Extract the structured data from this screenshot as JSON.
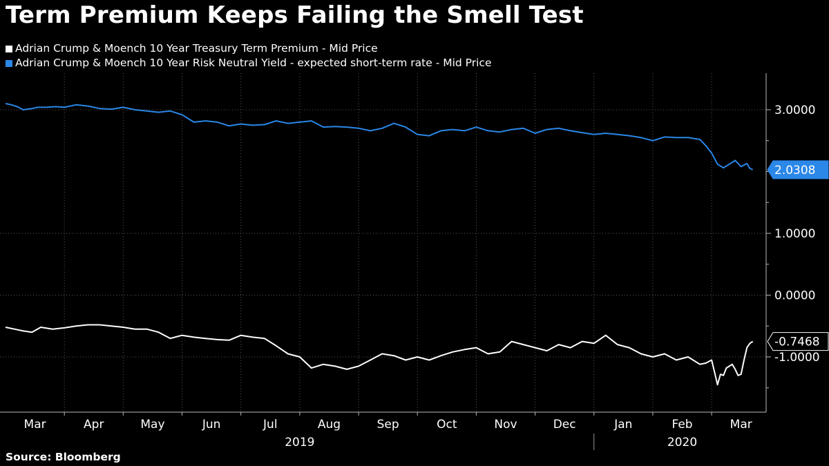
{
  "header": {
    "title": "Term Premium Keeps Failing the Smell Test"
  },
  "legend": [
    {
      "label": "Adrian Crump & Moench 10 Year Treasury Term Premium - Mid Price",
      "color": "#ffffff"
    },
    {
      "label": "Adrian Crump & Moench 10 Year Risk Neutral Yield - expected short-term rate - Mid Price",
      "color": "#2b87e8"
    }
  ],
  "footer": {
    "source": "Source: Bloomberg"
  },
  "chart_data": {
    "type": "line",
    "title": "Term Premium Keeps Failing the Smell Test",
    "xlabel": "",
    "ylabel": "",
    "x_unit": "month index (0 = Mar 1, 2019)",
    "xlim": [
      0,
      12.75
    ],
    "ylim": [
      -1.9,
      3.55
    ],
    "yticks": [
      {
        "value": 3.0,
        "label": "3.0000"
      },
      {
        "value": 1.0,
        "label": "1.0000"
      },
      {
        "value": 0.0,
        "label": "0.0000"
      },
      {
        "value": -1.0,
        "label": "-1.0000"
      }
    ],
    "minor_yticks": [
      2.5,
      2.0,
      1.5,
      0.5,
      -0.5,
      -1.5
    ],
    "month_ticks": [
      {
        "x": 0.5,
        "label": "Mar"
      },
      {
        "x": 1.5,
        "label": "Apr"
      },
      {
        "x": 2.5,
        "label": "May"
      },
      {
        "x": 3.5,
        "label": "Jun"
      },
      {
        "x": 4.5,
        "label": "Jul"
      },
      {
        "x": 5.5,
        "label": "Aug"
      },
      {
        "x": 6.5,
        "label": "Sep"
      },
      {
        "x": 7.5,
        "label": "Oct"
      },
      {
        "x": 8.5,
        "label": "Nov"
      },
      {
        "x": 9.5,
        "label": "Dec"
      },
      {
        "x": 10.5,
        "label": "Jan"
      },
      {
        "x": 11.5,
        "label": "Feb"
      },
      {
        "x": 12.5,
        "label": "Mar"
      }
    ],
    "year_labels": [
      {
        "x": 5.0,
        "label": "2019"
      },
      {
        "x": 11.5,
        "label": "2020"
      }
    ],
    "year_divider_x": 10.0,
    "series": [
      {
        "name": "Adrian Crump & Moench 10 Year Risk Neutral Yield - expected short-term rate - Mid Price",
        "color": "#2b87e8",
        "last_label": "2.0308",
        "x": [
          0,
          0.1,
          0.2,
          0.3,
          0.45,
          0.55,
          0.7,
          0.85,
          1.0,
          1.2,
          1.4,
          1.6,
          1.8,
          2.0,
          2.2,
          2.4,
          2.6,
          2.8,
          3.0,
          3.2,
          3.4,
          3.6,
          3.8,
          4.0,
          4.2,
          4.4,
          4.6,
          4.8,
          5.0,
          5.2,
          5.4,
          5.6,
          5.8,
          6.0,
          6.2,
          6.4,
          6.6,
          6.8,
          7.0,
          7.2,
          7.4,
          7.6,
          7.8,
          8.0,
          8.2,
          8.4,
          8.6,
          8.8,
          9.0,
          9.2,
          9.4,
          9.6,
          9.8,
          10.0,
          10.2,
          10.4,
          10.6,
          10.8,
          11.0,
          11.2,
          11.4,
          11.6,
          11.8,
          11.9,
          12.0,
          12.1,
          12.2,
          12.3,
          12.4,
          12.5,
          12.6,
          12.65,
          12.7
        ],
        "values": [
          3.1,
          3.08,
          3.05,
          3.0,
          3.02,
          3.04,
          3.04,
          3.05,
          3.04,
          3.08,
          3.06,
          3.02,
          3.01,
          3.04,
          3.0,
          2.98,
          2.96,
          2.98,
          2.92,
          2.8,
          2.82,
          2.8,
          2.74,
          2.77,
          2.75,
          2.76,
          2.82,
          2.78,
          2.8,
          2.82,
          2.72,
          2.73,
          2.72,
          2.7,
          2.66,
          2.7,
          2.78,
          2.72,
          2.6,
          2.58,
          2.66,
          2.68,
          2.66,
          2.72,
          2.66,
          2.64,
          2.68,
          2.7,
          2.62,
          2.68,
          2.7,
          2.66,
          2.63,
          2.6,
          2.62,
          2.6,
          2.58,
          2.55,
          2.5,
          2.56,
          2.55,
          2.55,
          2.52,
          2.42,
          2.3,
          2.12,
          2.06,
          2.12,
          2.18,
          2.08,
          2.13,
          2.05,
          2.03
        ]
      },
      {
        "name": "Adrian Crump & Moench 10 Year Treasury Term Premium - Mid Price",
        "color": "#ffffff",
        "last_label": "-0.7468",
        "x": [
          0,
          0.15,
          0.3,
          0.45,
          0.6,
          0.8,
          1.0,
          1.2,
          1.4,
          1.6,
          1.8,
          2.0,
          2.2,
          2.4,
          2.6,
          2.8,
          3.0,
          3.2,
          3.4,
          3.6,
          3.8,
          4.0,
          4.2,
          4.4,
          4.6,
          4.8,
          5.0,
          5.2,
          5.4,
          5.6,
          5.8,
          6.0,
          6.2,
          6.4,
          6.6,
          6.8,
          7.0,
          7.2,
          7.4,
          7.6,
          7.8,
          8.0,
          8.2,
          8.4,
          8.6,
          8.8,
          9.0,
          9.2,
          9.4,
          9.6,
          9.8,
          10.0,
          10.2,
          10.4,
          10.6,
          10.8,
          11.0,
          11.2,
          11.4,
          11.6,
          11.8,
          11.9,
          12.0,
          12.05,
          12.1,
          12.15,
          12.2,
          12.25,
          12.3,
          12.35,
          12.4,
          12.45,
          12.5,
          12.55,
          12.6,
          12.65,
          12.7
        ],
        "values": [
          -0.52,
          -0.55,
          -0.58,
          -0.6,
          -0.52,
          -0.55,
          -0.53,
          -0.5,
          -0.48,
          -0.48,
          -0.5,
          -0.52,
          -0.55,
          -0.55,
          -0.6,
          -0.7,
          -0.65,
          -0.68,
          -0.7,
          -0.72,
          -0.73,
          -0.65,
          -0.68,
          -0.7,
          -0.82,
          -0.95,
          -1.0,
          -1.18,
          -1.12,
          -1.15,
          -1.2,
          -1.15,
          -1.05,
          -0.95,
          -0.98,
          -1.05,
          -1.0,
          -1.05,
          -0.98,
          -0.92,
          -0.88,
          -0.85,
          -0.95,
          -0.92,
          -0.75,
          -0.8,
          -0.85,
          -0.9,
          -0.8,
          -0.85,
          -0.75,
          -0.78,
          -0.65,
          -0.8,
          -0.85,
          -0.95,
          -1.0,
          -0.95,
          -1.05,
          -1.0,
          -1.12,
          -1.1,
          -1.05,
          -1.25,
          -1.45,
          -1.28,
          -1.3,
          -1.18,
          -1.15,
          -1.12,
          -1.2,
          -1.3,
          -1.28,
          -1.05,
          -0.85,
          -0.78,
          -0.75
        ]
      }
    ]
  }
}
